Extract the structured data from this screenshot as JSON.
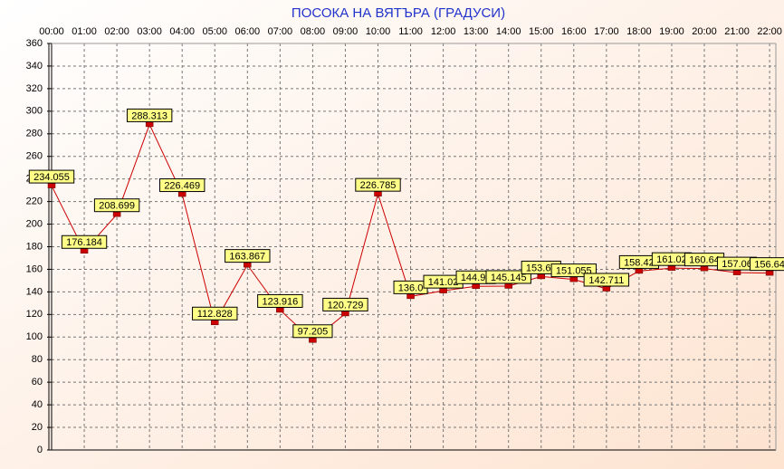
{
  "chart_data": {
    "type": "line",
    "title": "ПОСОКА НА ВЯТЪРА    (ГРАДУСИ)",
    "categories": [
      "00:00",
      "01:00",
      "02:00",
      "03:00",
      "04:00",
      "05:00",
      "06:00",
      "07:00",
      "08:00",
      "09:00",
      "10:00",
      "11:00",
      "12:00",
      "13:00",
      "14:00",
      "15:00",
      "16:00",
      "17:00",
      "18:00",
      "19:00",
      "20:00",
      "21:00",
      "22:00"
    ],
    "values": [
      234.055,
      176.184,
      208.699,
      288.313,
      226.469,
      112.828,
      163.867,
      123.916,
      97.205,
      120.729,
      226.785,
      136.0,
      141.02,
      144.9,
      145.145,
      153.6,
      151.055,
      142.711,
      158.42,
      161.02,
      160.64,
      157.06,
      156.64
    ],
    "value_labels": [
      "234.055",
      "176.184",
      "208.699",
      "288.313",
      "226.469",
      "112.828",
      "163.867",
      "123.916",
      "97.205",
      "120.729",
      "226.785",
      "136.0",
      "141.02",
      "144.90",
      "145.145",
      "153.60",
      "151.055",
      "142.711",
      "158.42",
      "161.02",
      "160.64",
      "157.06",
      "156.64"
    ],
    "color": "#cc0000",
    "ylim": [
      0,
      360
    ],
    "yticks": [
      0,
      20,
      40,
      60,
      80,
      100,
      120,
      140,
      160,
      180,
      200,
      220,
      240,
      260,
      280,
      300,
      320,
      340,
      360
    ],
    "grid": true
  }
}
